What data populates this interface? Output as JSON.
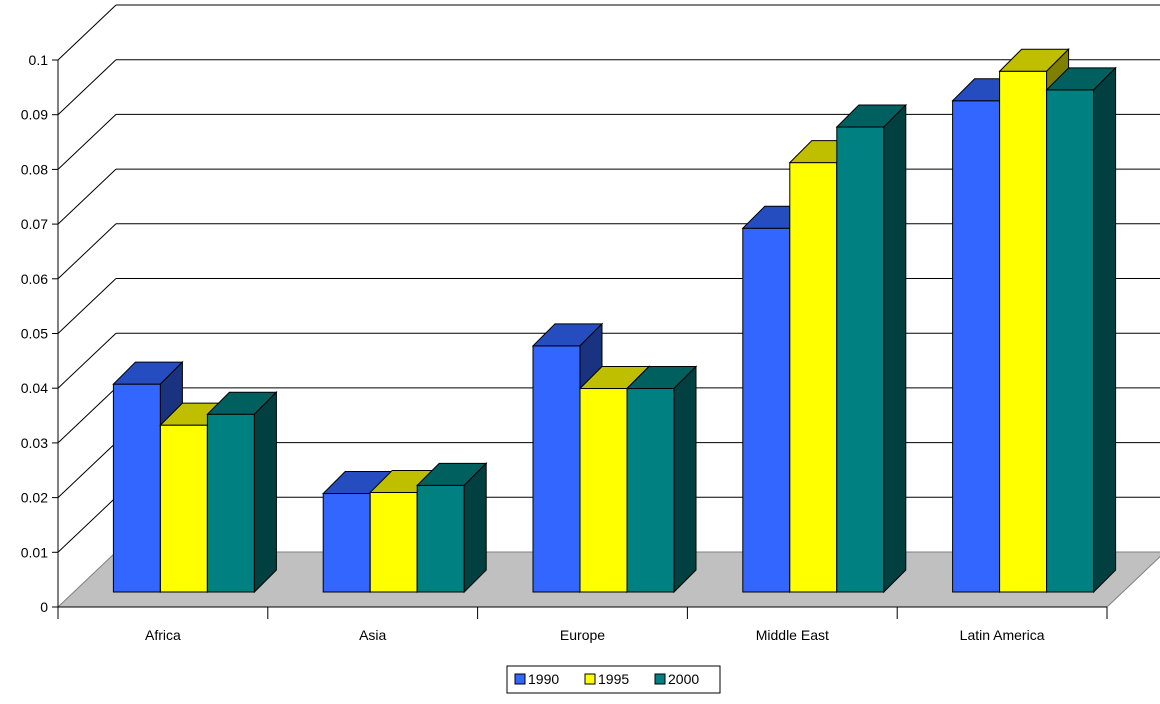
{
  "chart_data": {
    "type": "bar",
    "categories": [
      "Africa",
      "Asia",
      "Europe",
      "Middle East",
      "Latin America"
    ],
    "series": [
      {
        "name": "1990",
        "values": [
          0.038,
          0.018,
          0.045,
          0.0665,
          0.0898
        ],
        "color": "#3366ff"
      },
      {
        "name": "1995",
        "values": [
          0.0305,
          0.0182,
          0.0372,
          0.0785,
          0.0952
        ],
        "color": "#ffff00"
      },
      {
        "name": "2000",
        "values": [
          0.0325,
          0.0195,
          0.0372,
          0.085,
          0.0918
        ],
        "color": "#008080"
      }
    ],
    "yticks": [
      "0",
      "0.01",
      "0.02",
      "0.03",
      "0.04",
      "0.05",
      "0.06",
      "0.07",
      "0.08",
      "0.09",
      "0.1"
    ],
    "ylim": [
      0,
      0.1
    ],
    "grid": true,
    "legend": "bottom-center",
    "floor_color": "#c0c0c0"
  }
}
